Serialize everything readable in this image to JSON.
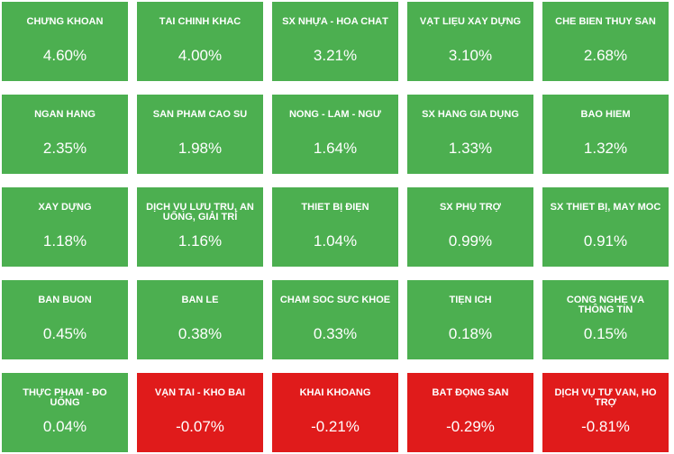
{
  "colors": {
    "up": "#4caf50",
    "down": "#e01b1b",
    "text": "#ffffff"
  },
  "tiles": [
    {
      "name": "CHỨNG KHOÁN",
      "value": "4.60%",
      "trend": "up"
    },
    {
      "name": "TÀI CHÍNH KHÁC",
      "value": "4.00%",
      "trend": "up"
    },
    {
      "name": "SX NHỰA - HÓA CHẤT",
      "value": "3.21%",
      "trend": "up"
    },
    {
      "name": "VẬT LIỆU XÂY DỰNG",
      "value": "3.10%",
      "trend": "up"
    },
    {
      "name": "CHẾ BIẾN THỦY SẢN",
      "value": "2.68%",
      "trend": "up"
    },
    {
      "name": "NGÂN HÀNG",
      "value": "2.35%",
      "trend": "up"
    },
    {
      "name": "SẢN PHẨM CAO SU",
      "value": "1.98%",
      "trend": "up"
    },
    {
      "name": "NÔNG - LÂM - NGƯ",
      "value": "1.64%",
      "trend": "up"
    },
    {
      "name": "SX HÀNG GIA DỤNG",
      "value": "1.33%",
      "trend": "up"
    },
    {
      "name": "BẢO HIỂM",
      "value": "1.32%",
      "trend": "up"
    },
    {
      "name": "XÂY DỰNG",
      "value": "1.18%",
      "trend": "up"
    },
    {
      "name": "DỊCH VỤ LƯU TRÚ, ĂN UỐNG, GIẢI TRÍ",
      "value": "1.16%",
      "trend": "up"
    },
    {
      "name": "THIẾT BỊ ĐIỆN",
      "value": "1.04%",
      "trend": "up"
    },
    {
      "name": "SX PHỤ TRỢ",
      "value": "0.99%",
      "trend": "up"
    },
    {
      "name": "SX THIẾT BỊ, MÁY MÓC",
      "value": "0.91%",
      "trend": "up"
    },
    {
      "name": "BÁN BUÔN",
      "value": "0.45%",
      "trend": "up"
    },
    {
      "name": "BÁN LẺ",
      "value": "0.38%",
      "trend": "up"
    },
    {
      "name": "CHĂM SÓC SỨC KHỎE",
      "value": "0.33%",
      "trend": "up"
    },
    {
      "name": "TIỆN ÍCH",
      "value": "0.18%",
      "trend": "up"
    },
    {
      "name": "CÔNG NGHỆ VÀ THÔNG TIN",
      "value": "0.15%",
      "trend": "up"
    },
    {
      "name": "THỰC PHẨM - ĐỒ UỐNG",
      "value": "0.04%",
      "trend": "up"
    },
    {
      "name": "VẬN TẢI - KHO BÃI",
      "value": "-0.07%",
      "trend": "down"
    },
    {
      "name": "KHAI KHOÁNG",
      "value": "-0.21%",
      "trend": "down"
    },
    {
      "name": "BẤT ĐỘNG SẢN",
      "value": "-0.29%",
      "trend": "down"
    },
    {
      "name": "DỊCH VỤ TƯ VẤN, HỖ TRỢ",
      "value": "-0.81%",
      "trend": "down"
    }
  ]
}
